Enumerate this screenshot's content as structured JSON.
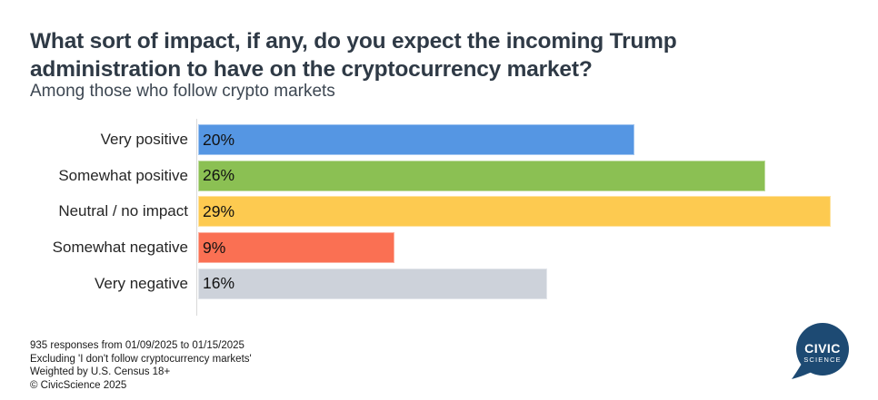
{
  "header": {
    "title": "What sort of impact, if any, do you expect the incoming Trump administration to have on the cryptocurrency market?",
    "subtitle": "Among those who follow crypto markets"
  },
  "chart_data": {
    "type": "bar",
    "orientation": "horizontal",
    "title": "What sort of impact, if any, do you expect the incoming Trump administration to have on the cryptocurrency market?",
    "subtitle": "Among those who follow crypto markets",
    "categories": [
      "Very positive",
      "Somewhat positive",
      "Neutral / no impact",
      "Somewhat negative",
      "Very negative"
    ],
    "values": [
      20,
      26,
      29,
      9,
      16
    ],
    "value_labels": [
      "20%",
      "26%",
      "29%",
      "9%",
      "16%"
    ],
    "colors": [
      "#5596e3",
      "#8bc053",
      "#fdca50",
      "#fa7053",
      "#cdd2da"
    ],
    "xlabel": "",
    "ylabel": "",
    "xlim": [
      0,
      30
    ],
    "grid": false,
    "legend": "none",
    "data_label_position": "inside-left"
  },
  "footer": {
    "lines": [
      "935 responses from 01/09/2025 to 01/15/2025",
      "Excluding 'I don't follow cryptocurrency markets'",
      "Weighted by U.S. Census 18+",
      "© CivicScience 2025"
    ]
  },
  "logo": {
    "line1": "CIVIC",
    "line2": "SCIENCE",
    "color": "#1d4a73",
    "text_color": "#ffffff"
  }
}
